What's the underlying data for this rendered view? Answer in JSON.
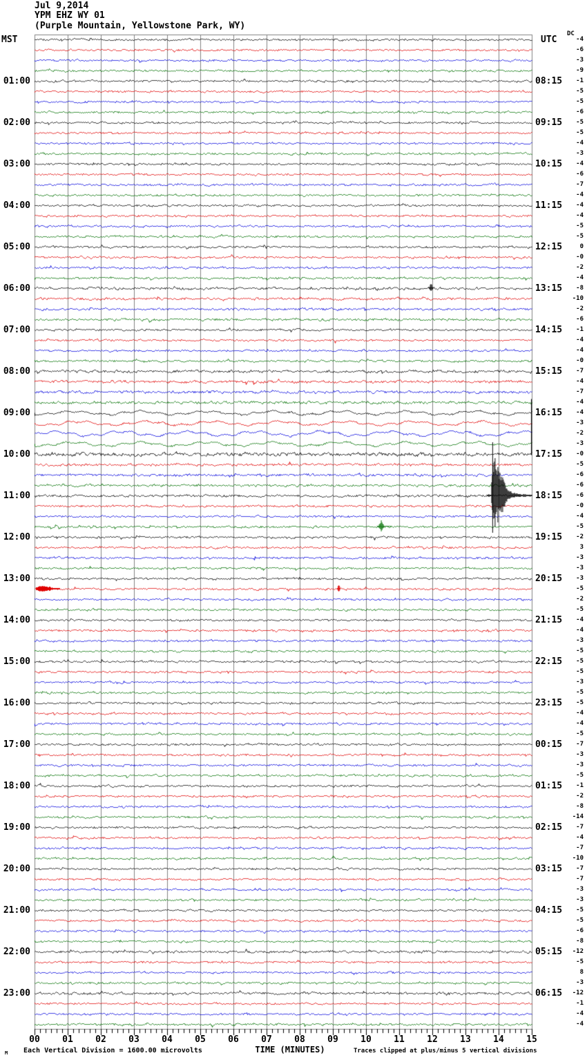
{
  "header": {
    "date": "Jul 9,2014",
    "station_line": "YPM EHZ WY 01",
    "location_line": "(Purple Mountain, Yellowstone Park, WY)"
  },
  "axis": {
    "left_tz": "MST",
    "right_tz": "UTC",
    "dc_label": "DC",
    "x_title": "TIME (MINUTES)",
    "x_tick_labels": [
      "00",
      "01",
      "02",
      "03",
      "04",
      "05",
      "06",
      "07",
      "08",
      "09",
      "10",
      "11",
      "12",
      "13",
      "14",
      "15"
    ]
  },
  "footer": {
    "mark": "M",
    "scale_note": "Each Vertical Division = 1600.00 microvolts",
    "clip_note": "Traces clipped at plus/minus 5 vertical divisions"
  },
  "chart_data": {
    "type": "line",
    "subtype": "helicorder",
    "title": "YPM EHZ WY 01 (Purple Mountain, Yellowstone Park, WY) Jul 9,2014",
    "xlabel": "TIME (MINUTES)",
    "x_range_minutes": [
      0,
      15
    ],
    "minutes_per_row": 15,
    "rows_total": 96,
    "grid": "vertical lines every 1 minute",
    "colors": {
      "black": "#000000",
      "red": "#e00000",
      "blue": "#0000dd",
      "green": "#007000",
      "grid": "#808080"
    },
    "color_cycle_per_quarter_hour": [
      "black",
      "red",
      "blue",
      "green"
    ],
    "left_hour_labels_mst": [
      "01:00",
      "02:00",
      "03:00",
      "04:00",
      "05:00",
      "06:00",
      "07:00",
      "08:00",
      "09:00",
      "10:00",
      "11:00",
      "12:00",
      "13:00",
      "14:00",
      "15:00",
      "16:00",
      "17:00",
      "18:00",
      "19:00",
      "20:00",
      "21:00",
      "22:00",
      "23:00"
    ],
    "right_hour_labels_utc": [
      "08:15",
      "09:15",
      "10:15",
      "11:15",
      "12:15",
      "13:15",
      "14:15",
      "15:15",
      "16:15",
      "17:15",
      "18:15",
      "19:15",
      "20:15",
      "21:15",
      "22:15",
      "23:15",
      "00:15",
      "01:15",
      "02:15",
      "03:15",
      "04:15",
      "05:15",
      "06:15"
    ],
    "rows": [
      {
        "t": "00:00",
        "c": "black",
        "dc": "-4"
      },
      {
        "t": "00:15",
        "c": "red",
        "dc": "-6"
      },
      {
        "t": "00:30",
        "c": "blue",
        "dc": "-3"
      },
      {
        "t": "00:45",
        "c": "green",
        "dc": "-9"
      },
      {
        "t": "01:00",
        "c": "black",
        "dc": "-1"
      },
      {
        "t": "01:15",
        "c": "red",
        "dc": "-5"
      },
      {
        "t": "01:30",
        "c": "blue",
        "dc": "-5"
      },
      {
        "t": "01:45",
        "c": "green",
        "dc": "-6"
      },
      {
        "t": "02:00",
        "c": "black",
        "dc": "-5"
      },
      {
        "t": "02:15",
        "c": "red",
        "dc": "-5"
      },
      {
        "t": "02:30",
        "c": "blue",
        "dc": "-4"
      },
      {
        "t": "02:45",
        "c": "green",
        "dc": "-3"
      },
      {
        "t": "03:00",
        "c": "black",
        "dc": "-4"
      },
      {
        "t": "03:15",
        "c": "red",
        "dc": "-6"
      },
      {
        "t": "03:30",
        "c": "blue",
        "dc": "-7"
      },
      {
        "t": "03:45",
        "c": "green",
        "dc": "-4"
      },
      {
        "t": "04:00",
        "c": "black",
        "dc": "-4"
      },
      {
        "t": "04:15",
        "c": "red",
        "dc": "-4"
      },
      {
        "t": "04:30",
        "c": "blue",
        "dc": "-5"
      },
      {
        "t": "04:45",
        "c": "green",
        "dc": "-5"
      },
      {
        "t": "05:00",
        "c": "black",
        "dc": "0"
      },
      {
        "t": "05:15",
        "c": "red",
        "dc": "-0"
      },
      {
        "t": "05:30",
        "c": "blue",
        "dc": "-2"
      },
      {
        "t": "05:45",
        "c": "green",
        "dc": "-4"
      },
      {
        "t": "06:00",
        "c": "black",
        "dc": "-8"
      },
      {
        "t": "06:15",
        "c": "red",
        "dc": "-10"
      },
      {
        "t": "06:30",
        "c": "blue",
        "dc": "-2"
      },
      {
        "t": "06:45",
        "c": "green",
        "dc": "-6"
      },
      {
        "t": "07:00",
        "c": "black",
        "dc": "-1"
      },
      {
        "t": "07:15",
        "c": "red",
        "dc": "-4"
      },
      {
        "t": "07:30",
        "c": "blue",
        "dc": "-4"
      },
      {
        "t": "07:45",
        "c": "green",
        "dc": "-0"
      },
      {
        "t": "08:00",
        "c": "black",
        "dc": "-7"
      },
      {
        "t": "08:15",
        "c": "red",
        "dc": "-4"
      },
      {
        "t": "08:30",
        "c": "blue",
        "dc": "-7"
      },
      {
        "t": "08:45",
        "c": "green",
        "dc": "-4"
      },
      {
        "t": "09:00",
        "c": "black",
        "dc": "-4"
      },
      {
        "t": "09:15",
        "c": "red",
        "dc": "-3"
      },
      {
        "t": "09:30",
        "c": "blue",
        "dc": "-2"
      },
      {
        "t": "09:45",
        "c": "green",
        "dc": "-3"
      },
      {
        "t": "10:00",
        "c": "black",
        "dc": "-0"
      },
      {
        "t": "10:15",
        "c": "red",
        "dc": "-5"
      },
      {
        "t": "10:30",
        "c": "blue",
        "dc": "-6"
      },
      {
        "t": "10:45",
        "c": "green",
        "dc": "-6"
      },
      {
        "t": "11:00",
        "c": "black",
        "dc": "-6"
      },
      {
        "t": "11:15",
        "c": "red",
        "dc": "-0"
      },
      {
        "t": "11:30",
        "c": "blue",
        "dc": "-4"
      },
      {
        "t": "11:45",
        "c": "green",
        "dc": "-5"
      },
      {
        "t": "12:00",
        "c": "black",
        "dc": "-2"
      },
      {
        "t": "12:15",
        "c": "red",
        "dc": "3"
      },
      {
        "t": "12:30",
        "c": "blue",
        "dc": "-3"
      },
      {
        "t": "12:45",
        "c": "green",
        "dc": "-3"
      },
      {
        "t": "13:00",
        "c": "black",
        "dc": "-3"
      },
      {
        "t": "13:15",
        "c": "red",
        "dc": "-5"
      },
      {
        "t": "13:30",
        "c": "blue",
        "dc": "-2"
      },
      {
        "t": "13:45",
        "c": "green",
        "dc": "-5"
      },
      {
        "t": "14:00",
        "c": "black",
        "dc": "-4"
      },
      {
        "t": "14:15",
        "c": "red",
        "dc": "-4"
      },
      {
        "t": "14:30",
        "c": "blue",
        "dc": "-3"
      },
      {
        "t": "14:45",
        "c": "green",
        "dc": "-5"
      },
      {
        "t": "15:00",
        "c": "black",
        "dc": "-5"
      },
      {
        "t": "15:15",
        "c": "red",
        "dc": "-5"
      },
      {
        "t": "15:30",
        "c": "blue",
        "dc": "-3"
      },
      {
        "t": "15:45",
        "c": "green",
        "dc": "-5"
      },
      {
        "t": "16:00",
        "c": "black",
        "dc": "-5"
      },
      {
        "t": "16:15",
        "c": "red",
        "dc": "-4"
      },
      {
        "t": "16:30",
        "c": "blue",
        "dc": "-4"
      },
      {
        "t": "16:45",
        "c": "green",
        "dc": "-5"
      },
      {
        "t": "17:00",
        "c": "black",
        "dc": "-7"
      },
      {
        "t": "17:15",
        "c": "red",
        "dc": "-3"
      },
      {
        "t": "17:30",
        "c": "blue",
        "dc": "-3"
      },
      {
        "t": "17:45",
        "c": "green",
        "dc": "-5"
      },
      {
        "t": "18:00",
        "c": "black",
        "dc": "-1"
      },
      {
        "t": "18:15",
        "c": "red",
        "dc": "-2"
      },
      {
        "t": "18:30",
        "c": "blue",
        "dc": "-8"
      },
      {
        "t": "18:45",
        "c": "green",
        "dc": "-14"
      },
      {
        "t": "19:00",
        "c": "black",
        "dc": "-7"
      },
      {
        "t": "19:15",
        "c": "red",
        "dc": "-4"
      },
      {
        "t": "19:30",
        "c": "blue",
        "dc": "-7"
      },
      {
        "t": "19:45",
        "c": "green",
        "dc": "-10"
      },
      {
        "t": "20:00",
        "c": "black",
        "dc": "-7"
      },
      {
        "t": "20:15",
        "c": "red",
        "dc": "-7"
      },
      {
        "t": "20:30",
        "c": "blue",
        "dc": "-3"
      },
      {
        "t": "20:45",
        "c": "green",
        "dc": "-3"
      },
      {
        "t": "21:00",
        "c": "black",
        "dc": "-5"
      },
      {
        "t": "21:15",
        "c": "red",
        "dc": "-5"
      },
      {
        "t": "21:30",
        "c": "blue",
        "dc": "-6"
      },
      {
        "t": "21:45",
        "c": "green",
        "dc": "-8"
      },
      {
        "t": "22:00",
        "c": "black",
        "dc": "-12"
      },
      {
        "t": "22:15",
        "c": "red",
        "dc": "-5"
      },
      {
        "t": "22:30",
        "c": "blue",
        "dc": "8"
      },
      {
        "t": "22:45",
        "c": "green",
        "dc": "-3"
      },
      {
        "t": "23:00",
        "c": "black",
        "dc": "-12"
      },
      {
        "t": "23:15",
        "c": "red",
        "dc": "-1"
      },
      {
        "t": "23:30",
        "c": "blue",
        "dc": "-4"
      },
      {
        "t": "23:45",
        "c": "green",
        "dc": "-4"
      }
    ],
    "noise_profile": {
      "default_amp": 1.0,
      "special_rows": {
        "25": {
          "amp": 1.3
        },
        "26": {
          "amp": 1.2
        },
        "27": {
          "amp": 1.2
        },
        "28": {
          "amp": 1.2
        },
        "33": {
          "amp": 1.4
        },
        "34": {
          "amp": 1.4
        },
        "35": {
          "amp": 1.4
        },
        "36": {
          "amp": 1.4
        },
        "37": {
          "amp": 2.2,
          "smooth": true
        },
        "38": {
          "amp": 2.4,
          "smooth": true
        },
        "39": {
          "amp": 2.8,
          "smooth": true
        },
        "40": {
          "amp": 2.4,
          "smooth": true
        },
        "41": {
          "amp": 1.9
        },
        "42": {
          "amp": 1.2
        },
        "43": {
          "amp": 1.2
        },
        "44": {
          "amp": 1.2
        },
        "45": {
          "amp": 1.2
        },
        "89": {
          "amp": 1.2
        },
        "93": {
          "amp": 1.2
        }
      }
    },
    "events": [
      {
        "kind": "clipped-quake",
        "row": 45,
        "row_time_mst": "11:00",
        "minute": 13.8,
        "note": "large event, coda decays to end of row, clipped at +/-5 divisions"
      },
      {
        "kind": "spike-line",
        "minute": 13.81,
        "row_from": 40,
        "row_to": 48.6,
        "note": "clipped spike drawn across adjacent rows"
      },
      {
        "kind": "edge-line",
        "minute": 14.98,
        "row_from": 35.7,
        "row_to": 41.1,
        "note": "vertical mark at right plot edge"
      },
      {
        "kind": "minor-event",
        "row": 48,
        "row_time_mst": "11:45",
        "minute": 10.45
      },
      {
        "kind": "minor-burst",
        "row": 54,
        "row_time_mst": "13:15",
        "minute": 0.25
      },
      {
        "kind": "spike",
        "row": 54,
        "row_time_mst": "13:15",
        "minute": 9.17
      },
      {
        "kind": "spike",
        "row": 25,
        "row_time_mst": "06:00",
        "minute": 11.95
      }
    ]
  }
}
